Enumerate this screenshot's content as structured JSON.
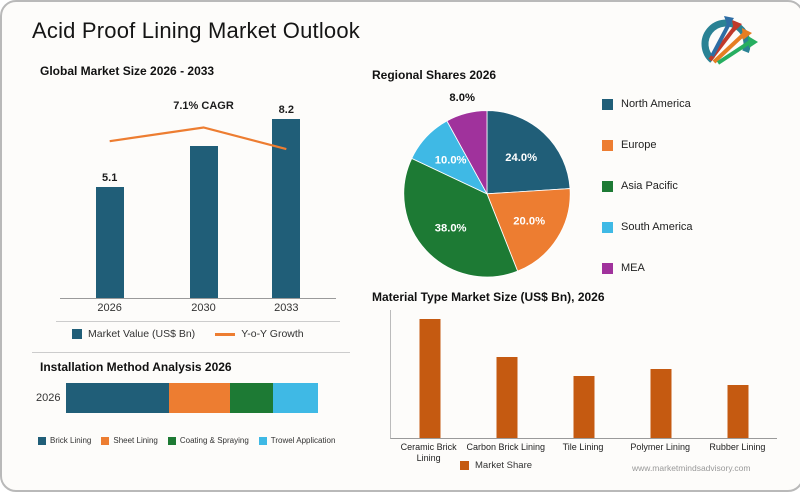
{
  "page": {
    "title": "Acid Proof Lining Market Outlook",
    "website": "www.marketmindsadvisory.com"
  },
  "colors": {
    "teal": "#205E78",
    "orange": "#ED7D31",
    "green": "#1D7A34",
    "light_blue": "#3FB9E5",
    "purple": "#A0329C",
    "brown_orange": "#C55A11"
  },
  "chart_data": [
    {
      "id": "global_market_size",
      "type": "bar",
      "title": "Global Market Size 2026 - 2033",
      "categories": [
        "2026",
        "2030",
        "2033"
      ],
      "values": [
        5.1,
        7.0,
        8.2
      ],
      "data_labels": [
        "5.1",
        "",
        "8.2"
      ],
      "values_note": "2030 value estimated from bar height; not labeled in chart",
      "annotation": "7.1% CAGR",
      "ylim": [
        0,
        9
      ],
      "bar_color": "#205E78",
      "line_color": "#ED7D31",
      "grid": false,
      "legend_position": "bottom",
      "legend": [
        {
          "label": "Market Value (US$ Bn)",
          "color": "#205E78",
          "marker": "square"
        },
        {
          "label": "Y-o-Y Growth",
          "color": "#ED7D31",
          "marker": "line"
        }
      ]
    },
    {
      "id": "regional_shares",
      "type": "pie",
      "title": "Regional Shares 2026",
      "categories": [
        "North America",
        "Europe",
        "Asia Pacific",
        "South America",
        "MEA"
      ],
      "values": [
        24.0,
        20.0,
        38.0,
        10.0,
        8.0
      ],
      "labels": [
        "24.0%",
        "20.0%",
        "38.0%",
        "10.0%",
        "8.0%"
      ],
      "colors": [
        "#205E78",
        "#ED7D31",
        "#1D7A34",
        "#3FB9E5",
        "#A0329C"
      ],
      "start_angle": "top, clockwise",
      "legend_position": "right"
    },
    {
      "id": "installation_method",
      "type": "stacked-bar-horizontal",
      "title": "Installation Method Analysis 2026",
      "row_label": "2026",
      "categories": [
        "Brick Lining",
        "Sheet Lining",
        "Coating & Spraying",
        "Trowel Application"
      ],
      "values": [
        41,
        24,
        17,
        18
      ],
      "values_note": "segment shares (%) estimated from segment widths; not labeled in chart",
      "colors": [
        "#205E78",
        "#ED7D31",
        "#1D7A34",
        "#3FB9E5"
      ],
      "legend_position": "bottom"
    },
    {
      "id": "material_type_market_size",
      "type": "bar",
      "title": "Material Type Market Size (US$ Bn), 2026",
      "categories": [
        "Ceramic Brick Lining",
        "Carbon Brick Lining",
        "Tile Lining",
        "Polymer Lining",
        "Rubber Lining"
      ],
      "values": [
        1.9,
        1.3,
        1.0,
        1.1,
        0.85
      ],
      "values_note": "values estimated from relative bar heights; no axis scale or data labels shown",
      "ylim": [
        0,
        2.05
      ],
      "bar_color": "#C55A11",
      "grid": false,
      "legend_position": "bottom",
      "legend": [
        {
          "label": "Market Share",
          "color": "#C55A11",
          "marker": "square"
        }
      ]
    }
  ]
}
